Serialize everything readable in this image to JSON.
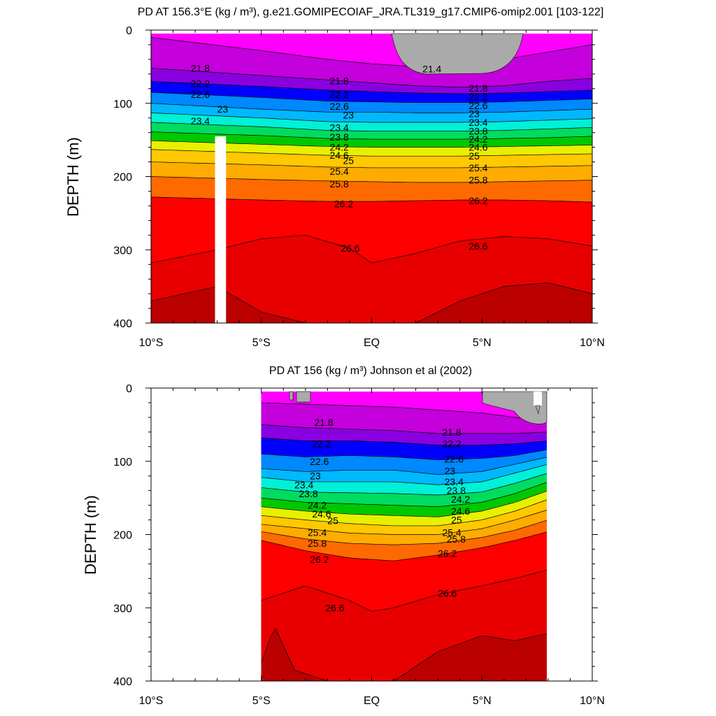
{
  "chart_data": [
    {
      "type": "contour",
      "title": "PD AT 156.3°E (kg / m³), g.e21.GOMIPECOIAF_JRA.TL319_g17.CMIP6-omip2.001 [103-122]",
      "ylabel": "DEPTH (m)",
      "xlim": [
        -10,
        10
      ],
      "ylim": [
        400,
        0
      ],
      "xticks": [
        {
          "value": -10,
          "label": "10°S"
        },
        {
          "value": -5,
          "label": "5°S"
        },
        {
          "value": 0,
          "label": "EQ"
        },
        {
          "value": 5,
          "label": "5°N"
        },
        {
          "value": 10,
          "label": "10°N"
        }
      ],
      "yticks": [
        0,
        100,
        200,
        300,
        400
      ],
      "data_extent_lat": [
        -10,
        10
      ],
      "missing_column_lat": [
        -7.1,
        -6.6
      ],
      "missing_column_depth": [
        145,
        400
      ],
      "isopycnals": [
        {
          "level": 21.4,
          "lat": [
            -10,
            -5,
            -2,
            0,
            2,
            4,
            6,
            8,
            10
          ],
          "depth": [
            10,
            28,
            40,
            46,
            50,
            50,
            40,
            30,
            20
          ]
        },
        {
          "level": 21.8,
          "lat": [
            -10,
            -5,
            -2,
            0,
            2,
            4,
            6,
            8,
            10
          ],
          "depth": [
            52,
            62,
            68,
            72,
            76,
            78,
            76,
            70,
            66
          ]
        },
        {
          "level": 22.2,
          "lat": [
            -10,
            -5,
            -2,
            0,
            2,
            4,
            6,
            8,
            10
          ],
          "depth": [
            70,
            77,
            82,
            84,
            86,
            87,
            86,
            84,
            82
          ]
        },
        {
          "level": 22.6,
          "lat": [
            -10,
            -5,
            -2,
            0,
            2,
            4,
            6,
            8,
            10
          ],
          "depth": [
            85,
            92,
            97,
            98,
            99,
            99,
            98,
            96,
            94
          ]
        },
        {
          "level": 23,
          "lat": [
            -10,
            -5,
            -2,
            0,
            2,
            4,
            6,
            8,
            10
          ],
          "depth": [
            100,
            108,
            112,
            112,
            113,
            113,
            112,
            110,
            108
          ]
        },
        {
          "level": 23.4,
          "lat": [
            -10,
            -5,
            -2,
            0,
            2,
            4,
            6,
            8,
            10
          ],
          "depth": [
            113,
            120,
            125,
            126,
            126,
            126,
            125,
            123,
            121
          ]
        },
        {
          "level": 23.8,
          "lat": [
            -10,
            -5,
            -2,
            0,
            2,
            4,
            6,
            8,
            10
          ],
          "depth": [
            126,
            132,
            137,
            138,
            138,
            138,
            137,
            135,
            133
          ]
        },
        {
          "level": 24.2,
          "lat": [
            -10,
            -5,
            -2,
            0,
            2,
            4,
            6,
            8,
            10
          ],
          "depth": [
            139,
            144,
            148,
            149,
            149,
            149,
            148,
            147,
            145
          ]
        },
        {
          "level": 24.6,
          "lat": [
            -10,
            -5,
            -2,
            0,
            2,
            4,
            6,
            8,
            10
          ],
          "depth": [
            151,
            156,
            159,
            160,
            160,
            160,
            159,
            158,
            157
          ]
        },
        {
          "level": 25,
          "lat": [
            -10,
            -5,
            -2,
            0,
            2,
            4,
            6,
            8,
            10
          ],
          "depth": [
            163,
            168,
            171,
            172,
            172,
            172,
            171,
            170,
            169
          ]
        },
        {
          "level": 25.4,
          "lat": [
            -10,
            -5,
            -2,
            0,
            2,
            4,
            6,
            8,
            10
          ],
          "depth": [
            180,
            184,
            187,
            188,
            188,
            188,
            187,
            186,
            185
          ]
        },
        {
          "level": 25.8,
          "lat": [
            -10,
            -5,
            -2,
            0,
            2,
            4,
            6,
            8,
            10
          ],
          "depth": [
            200,
            204,
            206,
            207,
            208,
            208,
            207,
            206,
            205
          ]
        },
        {
          "level": 26.2,
          "lat": [
            -10,
            -5,
            -2,
            0,
            2,
            4,
            6,
            8,
            10
          ],
          "depth": [
            228,
            232,
            234,
            234,
            233,
            232,
            232,
            233,
            235
          ]
        },
        {
          "level": 26.6,
          "lat": [
            -10,
            -7,
            -5,
            -3,
            -1,
            0,
            2,
            4,
            6,
            8,
            10
          ],
          "depth": [
            318,
            300,
            285,
            280,
            298,
            318,
            305,
            288,
            282,
            285,
            295
          ]
        },
        {
          "level": 26.8,
          "lat": [
            -10,
            -7,
            -5,
            -3,
            -1,
            0,
            2,
            4,
            6,
            8,
            10
          ],
          "depth": [
            370,
            350,
            385,
            400,
            400,
            400,
            400,
            370,
            350,
            345,
            360
          ]
        }
      ],
      "annotations": [
        {
          "text": "21.8",
          "lat": -8.2,
          "depth": 52
        },
        {
          "text": "21.4",
          "lat": 2.3,
          "depth": 53
        },
        {
          "text": "21.8",
          "lat": -1.9,
          "depth": 69
        },
        {
          "text": "22.2",
          "lat": -8.2,
          "depth": 73
        },
        {
          "text": "22.2",
          "lat": -1.9,
          "depth": 88
        },
        {
          "text": "22.6",
          "lat": -8.2,
          "depth": 88
        },
        {
          "text": "22.6",
          "lat": -1.9,
          "depth": 104
        },
        {
          "text": "23",
          "lat": -7.0,
          "depth": 108
        },
        {
          "text": "23",
          "lat": -1.3,
          "depth": 116
        },
        {
          "text": "23.4",
          "lat": -8.2,
          "depth": 124
        },
        {
          "text": "23.4",
          "lat": -1.9,
          "depth": 133
        },
        {
          "text": "23.8",
          "lat": -1.9,
          "depth": 146
        },
        {
          "text": "24.2",
          "lat": -1.9,
          "depth": 160
        },
        {
          "text": "24.6",
          "lat": -1.9,
          "depth": 171
        },
        {
          "text": "25",
          "lat": -1.3,
          "depth": 178
        },
        {
          "text": "25.4",
          "lat": -1.9,
          "depth": 193
        },
        {
          "text": "25.8",
          "lat": -1.9,
          "depth": 210
        },
        {
          "text": "26.2",
          "lat": -1.7,
          "depth": 237
        },
        {
          "text": "26.6",
          "lat": -1.4,
          "depth": 298
        },
        {
          "text": "21.8",
          "lat": 4.4,
          "depth": 79
        },
        {
          "text": "22.2",
          "lat": 4.4,
          "depth": 91
        },
        {
          "text": "22.6",
          "lat": 4.4,
          "depth": 103
        },
        {
          "text": "23",
          "lat": 4.4,
          "depth": 114
        },
        {
          "text": "23.4",
          "lat": 4.4,
          "depth": 126
        },
        {
          "text": "23.8",
          "lat": 4.4,
          "depth": 138
        },
        {
          "text": "24.2",
          "lat": 4.4,
          "depth": 149
        },
        {
          "text": "24.6",
          "lat": 4.4,
          "depth": 160
        },
        {
          "text": "25",
          "lat": 4.4,
          "depth": 172
        },
        {
          "text": "25.4",
          "lat": 4.4,
          "depth": 188
        },
        {
          "text": "25.8",
          "lat": 4.4,
          "depth": 205
        },
        {
          "text": "26.2",
          "lat": 4.4,
          "depth": 233
        },
        {
          "text": "26.6",
          "lat": 4.4,
          "depth": 295
        }
      ]
    },
    {
      "type": "contour",
      "title": "PD AT 156 (kg / m³) Johnson et al (2002)",
      "ylabel": "DEPTH (m)",
      "xlim": [
        -10,
        10
      ],
      "ylim": [
        400,
        0
      ],
      "xticks": [
        {
          "value": -10,
          "label": "10°S"
        },
        {
          "value": -5,
          "label": "5°S"
        },
        {
          "value": 0,
          "label": "EQ"
        },
        {
          "value": 5,
          "label": "5°N"
        },
        {
          "value": 10,
          "label": "10°N"
        }
      ],
      "yticks": [
        0,
        100,
        200,
        300,
        400
      ],
      "data_extent_lat": [
        -5,
        8
      ],
      "isopycnals": [
        {
          "level": 21.4,
          "lat": [
            -5,
            -3,
            -1,
            1,
            3,
            5,
            6.5,
            8
          ],
          "depth": [
            20,
            22,
            24,
            26,
            30,
            34,
            40,
            44
          ]
        },
        {
          "level": 21.8,
          "lat": [
            -5,
            -3,
            -1,
            1,
            3,
            5,
            6.5,
            8
          ],
          "depth": [
            50,
            54,
            56,
            58,
            62,
            62,
            62,
            60
          ]
        },
        {
          "level": 22.2,
          "lat": [
            -5,
            -3,
            -1,
            1,
            3,
            5,
            6.5,
            8
          ],
          "depth": [
            68,
            72,
            72,
            74,
            78,
            78,
            76,
            72
          ]
        },
        {
          "level": 22.6,
          "lat": [
            -5,
            -3,
            -1,
            1,
            3,
            5,
            6.5,
            8
          ],
          "depth": [
            90,
            94,
            92,
            94,
            98,
            96,
            92,
            84
          ]
        },
        {
          "level": 23,
          "lat": [
            -5,
            -3,
            -1,
            1,
            3,
            5,
            6.5,
            8
          ],
          "depth": [
            110,
            114,
            112,
            112,
            118,
            114,
            104,
            94
          ]
        },
        {
          "level": 23.4,
          "lat": [
            -5,
            -3,
            -1,
            1,
            3,
            5,
            6.5,
            8
          ],
          "depth": [
            122,
            128,
            128,
            128,
            132,
            128,
            116,
            104
          ]
        },
        {
          "level": 23.8,
          "lat": [
            -5,
            -3,
            -1,
            1,
            3,
            5,
            6.5,
            8
          ],
          "depth": [
            136,
            142,
            143,
            144,
            146,
            142,
            130,
            116
          ]
        },
        {
          "level": 24.2,
          "lat": [
            -5,
            -3,
            -1,
            1,
            3,
            5,
            6.5,
            8
          ],
          "depth": [
            150,
            156,
            158,
            160,
            162,
            156,
            144,
            128
          ]
        },
        {
          "level": 24.6,
          "lat": [
            -5,
            -3,
            -1,
            1,
            3,
            5,
            6.5,
            8
          ],
          "depth": [
            162,
            168,
            172,
            174,
            176,
            168,
            156,
            140
          ]
        },
        {
          "level": 25,
          "lat": [
            -5,
            -3,
            -1,
            1,
            3,
            5,
            6.5,
            8
          ],
          "depth": [
            174,
            180,
            185,
            188,
            188,
            180,
            168,
            152
          ]
        },
        {
          "level": 25.4,
          "lat": [
            -5,
            -3,
            -1,
            1,
            3,
            5,
            6.5,
            8
          ],
          "depth": [
            186,
            192,
            198,
            200,
            200,
            192,
            180,
            166
          ]
        },
        {
          "level": 25.8,
          "lat": [
            -5,
            -3,
            -1,
            1,
            3,
            5,
            6.5,
            8
          ],
          "depth": [
            196,
            206,
            212,
            214,
            212,
            204,
            194,
            180
          ]
        },
        {
          "level": 26.2,
          "lat": [
            -5,
            -3,
            -1,
            1,
            3,
            5,
            6.5,
            8
          ],
          "depth": [
            208,
            222,
            232,
            236,
            228,
            218,
            208,
            196
          ]
        },
        {
          "level": 26.6,
          "lat": [
            -5,
            -3,
            -1,
            0,
            1,
            3,
            5,
            6.5,
            8
          ],
          "depth": [
            290,
            270,
            290,
            305,
            300,
            282,
            270,
            260,
            248
          ]
        },
        {
          "level": 26.8,
          "lat": [
            -5,
            -4.4,
            -3.5,
            -2,
            -1,
            1,
            3,
            5,
            6.5,
            8
          ],
          "depth": [
            375,
            325,
            385,
            400,
            400,
            400,
            360,
            338,
            345,
            335
          ]
        }
      ],
      "annotations": [
        {
          "text": "21.8",
          "lat": -2.6,
          "depth": 47
        },
        {
          "text": "21.8",
          "lat": 3.2,
          "depth": 60
        },
        {
          "text": "22.2",
          "lat": -2.7,
          "depth": 76
        },
        {
          "text": "22.2",
          "lat": 3.2,
          "depth": 76
        },
        {
          "text": "22.6",
          "lat": -2.8,
          "depth": 100
        },
        {
          "text": "22.6",
          "lat": 3.3,
          "depth": 97
        },
        {
          "text": "23",
          "lat": -2.8,
          "depth": 120
        },
        {
          "text": "23",
          "lat": 3.3,
          "depth": 113
        },
        {
          "text": "23.4",
          "lat": -3.5,
          "depth": 132
        },
        {
          "text": "23.4",
          "lat": 3.3,
          "depth": 128
        },
        {
          "text": "23.8",
          "lat": -3.3,
          "depth": 144
        },
        {
          "text": "23.8",
          "lat": 3.4,
          "depth": 140
        },
        {
          "text": "24.2",
          "lat": -2.9,
          "depth": 160
        },
        {
          "text": "24.2",
          "lat": 3.6,
          "depth": 152
        },
        {
          "text": "24.6",
          "lat": -2.7,
          "depth": 172
        },
        {
          "text": "24.6",
          "lat": 3.6,
          "depth": 168
        },
        {
          "text": "25",
          "lat": -2.0,
          "depth": 181
        },
        {
          "text": "25",
          "lat": 3.6,
          "depth": 180
        },
        {
          "text": "25.4",
          "lat": -2.9,
          "depth": 197
        },
        {
          "text": "25.4",
          "lat": 3.2,
          "depth": 197
        },
        {
          "text": "25.8",
          "lat": -2.9,
          "depth": 212
        },
        {
          "text": "25.8",
          "lat": 3.4,
          "depth": 206
        },
        {
          "text": "26.2",
          "lat": -2.8,
          "depth": 234
        },
        {
          "text": "26.2",
          "lat": 3.0,
          "depth": 226
        },
        {
          "text": "26.6",
          "lat": -2.1,
          "depth": 300
        },
        {
          "text": "26.6",
          "lat": 3.0,
          "depth": 280
        }
      ]
    }
  ],
  "colors": {
    "land_gray": "#aaaaaa",
    "contour_line": "#000000",
    "missing": "#ffffff",
    "palette": [
      "#ff00ff",
      "#e400e8",
      "#c400dc",
      "#8a00e0",
      "#4b00e6",
      "#0000ff",
      "#0050ff",
      "#0088ff",
      "#00b8ff",
      "#00e0ff",
      "#00f0d8",
      "#00e8a0",
      "#00dc60",
      "#00c800",
      "#80e000",
      "#e8f000",
      "#ffe000",
      "#ffc800",
      "#ffac00",
      "#ff9000",
      "#ff6a00",
      "#ff3c00",
      "#ff0000",
      "#e80000",
      "#d20000",
      "#bb0000"
    ]
  }
}
